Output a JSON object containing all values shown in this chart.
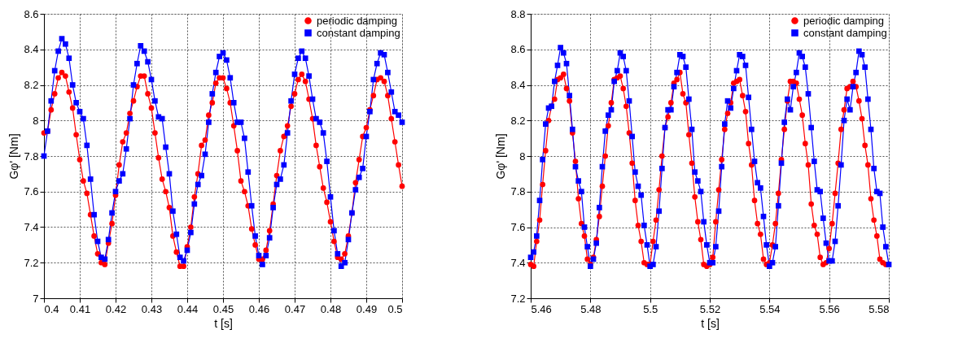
{
  "chart_data": [
    {
      "type": "line",
      "xlabel": "t [s]",
      "ylabel": "Gφ' [Nm]",
      "xlim": [
        0.4,
        0.5
      ],
      "ylim": [
        7,
        8.6
      ],
      "xticks": [
        0.4,
        0.41,
        0.42,
        0.43,
        0.44,
        0.45,
        0.46,
        0.47,
        0.48,
        0.49,
        0.5
      ],
      "yticks": [
        7,
        7.2,
        7.4,
        7.6,
        7.8,
        8,
        8.2,
        8.4,
        8.6
      ],
      "grid": true,
      "legend": "top right",
      "line_style": "solid",
      "x": [
        0.4,
        0.401,
        0.402,
        0.403,
        0.404,
        0.405,
        0.406,
        0.407,
        0.408,
        0.409,
        0.41,
        0.411,
        0.412,
        0.413,
        0.414,
        0.415,
        0.416,
        0.417,
        0.418,
        0.419,
        0.42,
        0.421,
        0.422,
        0.423,
        0.424,
        0.425,
        0.426,
        0.427,
        0.428,
        0.429,
        0.43,
        0.431,
        0.432,
        0.433,
        0.434,
        0.435,
        0.436,
        0.437,
        0.438,
        0.439,
        0.44,
        0.441,
        0.442,
        0.443,
        0.444,
        0.445,
        0.446,
        0.447,
        0.448,
        0.449,
        0.45,
        0.451,
        0.452,
        0.453,
        0.454,
        0.455,
        0.456,
        0.457,
        0.458,
        0.459,
        0.46,
        0.461,
        0.462,
        0.463,
        0.464,
        0.465,
        0.466,
        0.467,
        0.468,
        0.469,
        0.47,
        0.471,
        0.472,
        0.473,
        0.474,
        0.475,
        0.476,
        0.477,
        0.478,
        0.479,
        0.48,
        0.481,
        0.482,
        0.483,
        0.484,
        0.485,
        0.486,
        0.487,
        0.488,
        0.489,
        0.49,
        0.491,
        0.492,
        0.493,
        0.494,
        0.495,
        0.496,
        0.497,
        0.498,
        0.499,
        0.5
      ],
      "series": [
        {
          "name": "periodic damping",
          "color": "#ff0000",
          "marker": "circle",
          "values": [
            7.93,
            7.94,
            8.06,
            8.15,
            8.24,
            8.27,
            8.25,
            8.16,
            8.07,
            7.92,
            7.78,
            7.66,
            7.59,
            7.47,
            7.35,
            7.25,
            7.2,
            7.19,
            7.31,
            7.42,
            7.58,
            7.75,
            7.88,
            7.93,
            8.04,
            8.11,
            8.19,
            8.25,
            8.25,
            8.15,
            8.07,
            7.93,
            7.79,
            7.67,
            7.6,
            7.51,
            7.35,
            7.26,
            7.18,
            7.18,
            7.29,
            7.4,
            7.57,
            7.7,
            7.86,
            7.89,
            8.03,
            8.1,
            8.21,
            8.24,
            8.24,
            8.18,
            8.1,
            7.97,
            7.83,
            7.66,
            7.6,
            7.52,
            7.39,
            7.3,
            7.22,
            7.22,
            7.27,
            7.38,
            7.53,
            7.69,
            7.83,
            7.91,
            7.97,
            8.08,
            8.15,
            8.23,
            8.26,
            8.22,
            8.12,
            8.01,
            7.86,
            7.74,
            7.62,
            7.54,
            7.43,
            7.32,
            7.23,
            7.22,
            7.25,
            7.35,
            7.48,
            7.65,
            7.78,
            7.91,
            7.96,
            8.06,
            8.14,
            8.23,
            8.24,
            8.22,
            8.14,
            8.01,
            7.88,
            7.75,
            7.63
          ]
        },
        {
          "name": "constant damping",
          "color": "#0000ff",
          "marker": "square",
          "values": [
            7.8,
            7.94,
            8.11,
            8.28,
            8.39,
            8.46,
            8.43,
            8.35,
            8.2,
            8.1,
            8.05,
            8.01,
            7.86,
            7.67,
            7.47,
            7.32,
            7.23,
            7.22,
            7.33,
            7.48,
            7.6,
            7.66,
            7.7,
            7.84,
            8.01,
            8.2,
            8.32,
            8.42,
            8.39,
            8.33,
            8.23,
            8.11,
            8.02,
            8.01,
            7.85,
            7.7,
            7.49,
            7.36,
            7.23,
            7.21,
            7.27,
            7.37,
            7.53,
            7.64,
            7.69,
            7.81,
            7.99,
            8.15,
            8.27,
            8.36,
            8.38,
            8.34,
            8.24,
            8.1,
            7.99,
            7.99,
            7.9,
            7.71,
            7.52,
            7.35,
            7.24,
            7.19,
            7.24,
            7.34,
            7.51,
            7.64,
            7.67,
            7.75,
            7.93,
            8.11,
            8.26,
            8.35,
            8.39,
            8.35,
            8.25,
            8.12,
            8.01,
            7.99,
            7.93,
            7.77,
            7.57,
            7.38,
            7.25,
            7.18,
            7.2,
            7.33,
            7.48,
            7.61,
            7.68,
            7.73,
            7.91,
            8.05,
            8.23,
            8.32,
            8.38,
            8.37,
            8.27,
            8.16,
            8.05,
            8.03,
            7.99
          ]
        }
      ]
    },
    {
      "type": "line",
      "xlabel": "t [s]",
      "ylabel": "Gφ' [Nm]",
      "xlim": [
        5.46,
        5.58
      ],
      "ylim": [
        7.2,
        8.8
      ],
      "xticks": [
        5.46,
        5.48,
        5.5,
        5.52,
        5.54,
        5.56,
        5.58
      ],
      "yticks": [
        7.2,
        7.4,
        7.6,
        7.8,
        8,
        8.2,
        8.4,
        8.6,
        8.8
      ],
      "grid": true,
      "legend": "top right",
      "line_style": "solid",
      "x": [
        5.46,
        5.461,
        5.462,
        5.463,
        5.464,
        5.465,
        5.466,
        5.467,
        5.468,
        5.469,
        5.47,
        5.471,
        5.472,
        5.473,
        5.474,
        5.475,
        5.476,
        5.477,
        5.478,
        5.479,
        5.48,
        5.481,
        5.482,
        5.483,
        5.484,
        5.485,
        5.486,
        5.487,
        5.488,
        5.489,
        5.49,
        5.491,
        5.492,
        5.493,
        5.494,
        5.495,
        5.496,
        5.497,
        5.498,
        5.499,
        5.5,
        5.501,
        5.502,
        5.503,
        5.504,
        5.505,
        5.506,
        5.507,
        5.508,
        5.509,
        5.51,
        5.511,
        5.512,
        5.513,
        5.514,
        5.515,
        5.516,
        5.517,
        5.518,
        5.519,
        5.52,
        5.521,
        5.522,
        5.523,
        5.524,
        5.525,
        5.526,
        5.527,
        5.528,
        5.529,
        5.53,
        5.531,
        5.532,
        5.533,
        5.534,
        5.535,
        5.536,
        5.537,
        5.538,
        5.539,
        5.54,
        5.541,
        5.542,
        5.543,
        5.544,
        5.545,
        5.546,
        5.547,
        5.548,
        5.549,
        5.55,
        5.551,
        5.552,
        5.553,
        5.554,
        5.555,
        5.556,
        5.557,
        5.558,
        5.559,
        5.56,
        5.561,
        5.562,
        5.563,
        5.564,
        5.565,
        5.566,
        5.567,
        5.568,
        5.569,
        5.57,
        5.571,
        5.572,
        5.573,
        5.574,
        5.575,
        5.576,
        5.577,
        5.578,
        5.579,
        5.58
      ],
      "series": [
        {
          "name": "periodic damping",
          "color": "#ff0000",
          "marker": "circle",
          "values": [
            7.39,
            7.38,
            7.52,
            7.64,
            7.84,
            8.03,
            8.2,
            8.28,
            8.32,
            8.43,
            8.44,
            8.46,
            8.38,
            8.31,
            8.13,
            7.97,
            7.76,
            7.62,
            7.55,
            7.42,
            7.39,
            7.43,
            7.53,
            7.66,
            7.83,
            8.0,
            8.17,
            8.3,
            8.43,
            8.44,
            8.45,
            8.38,
            8.28,
            8.13,
            7.96,
            7.75,
            7.61,
            7.52,
            7.4,
            7.39,
            7.39,
            7.52,
            7.64,
            7.81,
            8.0,
            8.16,
            8.22,
            8.3,
            8.41,
            8.43,
            8.47,
            8.35,
            8.3,
            8.12,
            7.96,
            7.77,
            7.63,
            7.53,
            7.39,
            7.38,
            7.39,
            7.43,
            7.63,
            7.81,
            7.98,
            8.15,
            8.24,
            8.3,
            8.41,
            8.42,
            8.43,
            8.34,
            8.25,
            8.07,
            7.95,
            7.75,
            7.62,
            7.56,
            7.42,
            7.39,
            7.4,
            7.5,
            7.62,
            7.79,
            7.98,
            8.15,
            8.31,
            8.42,
            8.42,
            8.41,
            8.32,
            8.23,
            8.07,
            7.95,
            7.73,
            7.61,
            7.56,
            7.43,
            7.39,
            7.4,
            7.48,
            7.62,
            7.79,
            7.96,
            8.15,
            8.26,
            8.38,
            8.39,
            8.42,
            8.39,
            8.31,
            8.21,
            8.06,
            7.95,
            7.76,
            7.64,
            7.55,
            7.42,
            7.4,
            7.39,
            null
          ]
        },
        {
          "name": "constant damping",
          "color": "#0000ff",
          "marker": "square",
          "values": [
            7.43,
            7.46,
            7.55,
            7.75,
            7.98,
            8.18,
            8.27,
            8.28,
            8.42,
            8.51,
            8.61,
            8.58,
            8.52,
            8.34,
            8.15,
            7.94,
            7.86,
            7.8,
            7.6,
            7.49,
            7.38,
            7.42,
            7.51,
            7.71,
            7.94,
            8.14,
            8.23,
            8.26,
            8.42,
            8.48,
            8.58,
            8.56,
            8.48,
            8.31,
            8.11,
            7.91,
            7.83,
            7.78,
            7.61,
            7.5,
            7.38,
            7.39,
            7.49,
            7.69,
            7.93,
            8.16,
            8.26,
            8.26,
            8.39,
            8.47,
            8.57,
            8.56,
            8.5,
            8.32,
            8.15,
            7.91,
            7.86,
            7.8,
            7.63,
            7.5,
            7.4,
            7.4,
            7.49,
            7.69,
            7.94,
            8.18,
            8.31,
            8.27,
            8.38,
            8.48,
            8.57,
            8.56,
            8.51,
            8.33,
            8.15,
            7.97,
            7.85,
            7.82,
            7.66,
            7.5,
            7.38,
            7.4,
            7.49,
            7.72,
            7.96,
            8.19,
            8.32,
            8.26,
            8.39,
            8.47,
            8.58,
            8.56,
            8.5,
            8.35,
            8.16,
            7.97,
            7.81,
            7.8,
            7.65,
            7.51,
            7.41,
            7.41,
            7.52,
            7.72,
            7.95,
            8.2,
            8.32,
            8.26,
            8.39,
            8.47,
            8.59,
            8.57,
            8.5,
            8.32,
            8.15,
            7.93,
            7.8,
            7.79,
            7.6,
            7.49,
            7.39
          ]
        }
      ]
    }
  ]
}
